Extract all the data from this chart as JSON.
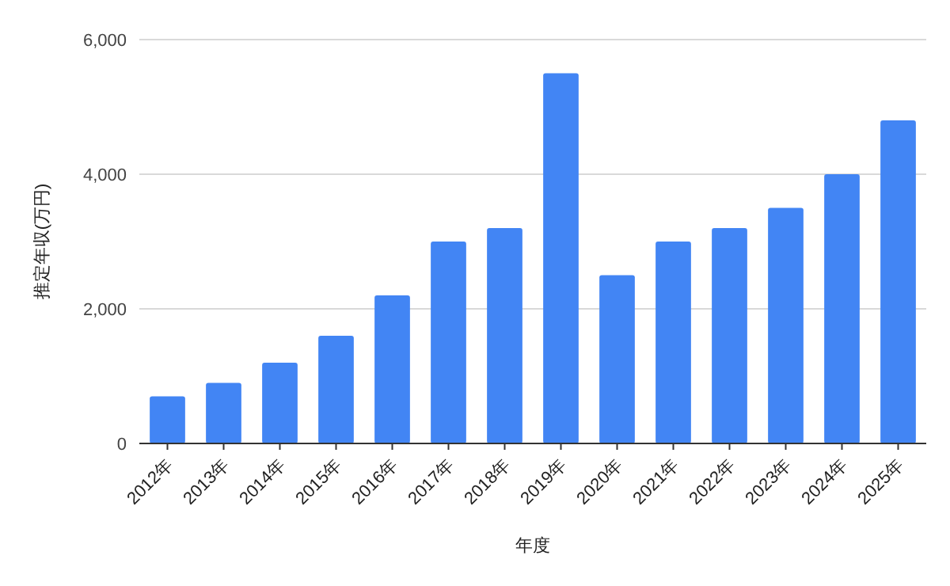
{
  "chart_data": {
    "type": "bar",
    "xlabel": "年度",
    "ylabel": "推定年収(万円)",
    "categories": [
      "2012年",
      "2013年",
      "2014年",
      "2015年",
      "2016年",
      "2017年",
      "2018年",
      "2019年",
      "2020年",
      "2021年",
      "2022年",
      "2023年",
      "2024年",
      "2025年"
    ],
    "values": [
      700,
      900,
      1200,
      1600,
      2200,
      3000,
      3200,
      5500,
      2500,
      3000,
      3200,
      3500,
      4000,
      4800
    ],
    "color": "#4285f4",
    "ylim": [
      0,
      6000
    ],
    "yticks": [
      0,
      {
        "value": 2000,
        "label": "2,000"
      },
      {
        "value": 4000,
        "label": "4,000"
      },
      {
        "value": 6000,
        "label": "6,000"
      }
    ],
    "grid": "y"
  }
}
